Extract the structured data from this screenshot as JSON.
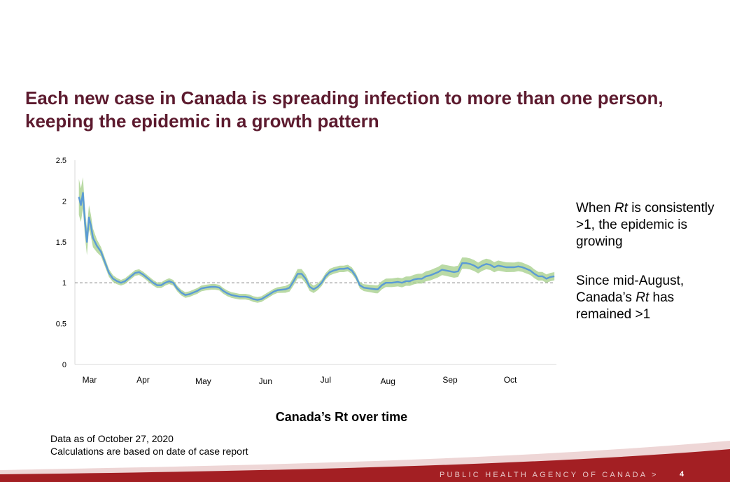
{
  "slide": {
    "title_line1": "Each new case in Canada is spreading infection to more than one person,",
    "title_line2": "keeping the epidemic in a growth pattern"
  },
  "notes": {
    "note1_pre": "When ",
    "note1_em": "Rt",
    "note1_post": " is consistently >1, the epidemic is growing",
    "note2_pre": "Since mid-August, Canada’s ",
    "note2_em": "Rt",
    "note2_post": " has remained >1"
  },
  "chart_caption": "Canada’s Rt over time",
  "footnotes": {
    "line1": "Data as of October 27, 2020",
    "line2": "Calculations are based on date of case report"
  },
  "footer": {
    "agency": "PUBLIC HEALTH AGENCY OF CANADA  >",
    "page_number": "4"
  },
  "colors": {
    "title": "#5c1a2e",
    "line": "#5b9bd5",
    "band": "#a9d18e",
    "reference_line": "#808080",
    "footer_band": "#a31f23"
  },
  "chart_data": {
    "type": "line",
    "title": "Canada’s Rt over time",
    "xlabel": "",
    "ylabel": "",
    "x_tick_labels": [
      "Mar",
      "Apr",
      "May",
      "Jun",
      "Jul",
      "Aug",
      "Sep",
      "Oct"
    ],
    "x_tick_days": [
      1,
      32,
      62,
      93,
      123,
      154,
      185,
      215
    ],
    "y_ticks": [
      "0",
      "0.5",
      "1",
      "1.5",
      "2",
      "2.5"
    ],
    "ylim": [
      0,
      2.5
    ],
    "xlim": [
      -2,
      238
    ],
    "grid": false,
    "reference_line": {
      "y": 1,
      "style": "dashed"
    },
    "series": [
      {
        "type": "line",
        "x_unit": "day of 2020 from Mar 1",
        "points": [
          [
            0,
            2.05
          ],
          [
            1,
            1.95
          ],
          [
            2,
            2.1
          ],
          [
            3,
            1.75
          ],
          [
            4,
            1.5
          ],
          [
            5,
            1.8
          ],
          [
            6,
            1.7
          ],
          [
            7,
            1.55
          ],
          [
            9,
            1.45
          ],
          [
            11,
            1.38
          ],
          [
            13,
            1.25
          ],
          [
            15,
            1.12
          ],
          [
            17,
            1.05
          ],
          [
            19,
            1.02
          ],
          [
            21,
            1.0
          ],
          [
            23,
            1.02
          ],
          [
            25,
            1.06
          ],
          [
            28,
            1.12
          ],
          [
            30,
            1.13
          ],
          [
            32,
            1.1
          ],
          [
            35,
            1.04
          ],
          [
            37,
            1.0
          ],
          [
            39,
            0.97
          ],
          [
            41,
            0.97
          ],
          [
            43,
            1.0
          ],
          [
            45,
            1.02
          ],
          [
            47,
            1.0
          ],
          [
            49,
            0.93
          ],
          [
            51,
            0.88
          ],
          [
            53,
            0.85
          ],
          [
            55,
            0.86
          ],
          [
            57,
            0.88
          ],
          [
            59,
            0.9
          ],
          [
            61,
            0.93
          ],
          [
            63,
            0.94
          ],
          [
            66,
            0.95
          ],
          [
            68,
            0.95
          ],
          [
            70,
            0.94
          ],
          [
            72,
            0.9
          ],
          [
            74,
            0.87
          ],
          [
            76,
            0.85
          ],
          [
            78,
            0.84
          ],
          [
            80,
            0.83
          ],
          [
            83,
            0.83
          ],
          [
            85,
            0.82
          ],
          [
            87,
            0.8
          ],
          [
            89,
            0.79
          ],
          [
            91,
            0.8
          ],
          [
            93,
            0.83
          ],
          [
            95,
            0.86
          ],
          [
            97,
            0.89
          ],
          [
            99,
            0.91
          ],
          [
            103,
            0.92
          ],
          [
            105,
            0.94
          ],
          [
            107,
            1.02
          ],
          [
            109,
            1.11
          ],
          [
            111,
            1.11
          ],
          [
            113,
            1.05
          ],
          [
            115,
            0.95
          ],
          [
            117,
            0.92
          ],
          [
            119,
            0.95
          ],
          [
            121,
            1.0
          ],
          [
            123,
            1.08
          ],
          [
            125,
            1.13
          ],
          [
            127,
            1.15
          ],
          [
            130,
            1.17
          ],
          [
            132,
            1.17
          ],
          [
            134,
            1.18
          ],
          [
            136,
            1.15
          ],
          [
            138,
            1.08
          ],
          [
            140,
            0.97
          ],
          [
            142,
            0.94
          ],
          [
            145,
            0.93
          ],
          [
            148,
            0.92
          ],
          [
            149,
            0.92
          ],
          [
            151,
            0.97
          ],
          [
            153,
            1.0
          ],
          [
            156,
            1.0
          ],
          [
            159,
            1.01
          ],
          [
            161,
            1.0
          ],
          [
            163,
            1.02
          ],
          [
            165,
            1.02
          ],
          [
            167,
            1.04
          ],
          [
            169,
            1.05
          ],
          [
            171,
            1.05
          ],
          [
            173,
            1.08
          ],
          [
            175,
            1.09
          ],
          [
            177,
            1.11
          ],
          [
            179,
            1.13
          ],
          [
            181,
            1.16
          ],
          [
            183,
            1.15
          ],
          [
            185,
            1.14
          ],
          [
            187,
            1.13
          ],
          [
            189,
            1.14
          ],
          [
            191,
            1.24
          ],
          [
            193,
            1.24
          ],
          [
            195,
            1.23
          ],
          [
            197,
            1.21
          ],
          [
            199,
            1.18
          ],
          [
            201,
            1.21
          ],
          [
            203,
            1.23
          ],
          [
            205,
            1.22
          ],
          [
            207,
            1.19
          ],
          [
            209,
            1.21
          ],
          [
            211,
            1.2
          ],
          [
            213,
            1.19
          ],
          [
            215,
            1.19
          ],
          [
            217,
            1.19
          ],
          [
            219,
            1.2
          ],
          [
            221,
            1.19
          ],
          [
            223,
            1.17
          ],
          [
            225,
            1.15
          ],
          [
            227,
            1.11
          ],
          [
            229,
            1.08
          ],
          [
            231,
            1.08
          ],
          [
            233,
            1.05
          ],
          [
            235,
            1.07
          ],
          [
            237,
            1.08
          ]
        ]
      },
      {
        "type": "band",
        "band_halfwidth_points": [
          [
            0,
            0.22
          ],
          [
            5,
            0.15
          ],
          [
            10,
            0.06
          ],
          [
            20,
            0.035
          ],
          [
            100,
            0.035
          ],
          [
            110,
            0.06
          ],
          [
            120,
            0.04
          ],
          [
            140,
            0.04
          ],
          [
            150,
            0.05
          ],
          [
            190,
            0.07
          ],
          [
            237,
            0.05
          ]
        ]
      }
    ]
  }
}
